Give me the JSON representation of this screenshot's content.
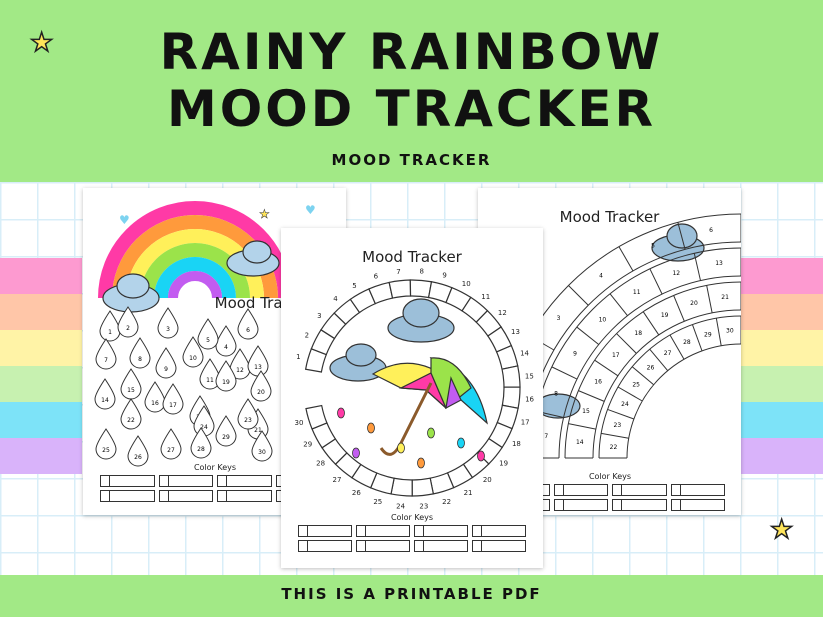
{
  "header": {
    "title_line1": "RAINY RAINBOW",
    "title_line2": "MOOD TRACKER",
    "subtitle": "MOOD TRACKER"
  },
  "footer": {
    "text": "THIS IS A PRINTABLE PDF"
  },
  "pages": {
    "left": {
      "title": "Mood Tracker",
      "keys_label": "Color Keys"
    },
    "center": {
      "title": "Mood Tracker",
      "keys_label": "Color Keys"
    },
    "right": {
      "title": "Mood Tracker",
      "keys_label": "Color Keys"
    }
  },
  "days": [
    1,
    2,
    3,
    4,
    5,
    6,
    7,
    8,
    9,
    10,
    11,
    12,
    13,
    14,
    15,
    16,
    17,
    18,
    19,
    20,
    21,
    22,
    23,
    24,
    25,
    26,
    27,
    28,
    29,
    30
  ],
  "colors": {
    "green": "#a2e986",
    "pink": "#ff3aa6",
    "orange": "#ff9a3c",
    "yellow": "#fff05a",
    "lime": "#9be34a",
    "cyan": "#19d4f5",
    "purple": "#c25cf0",
    "cloud": "#9cbfd9",
    "stripes": [
      "#fd9ad0",
      "#ffc6a8",
      "#fff3a6",
      "#c7f1b0",
      "#7de3f8",
      "#d9b3fa"
    ]
  },
  "icons": [
    "star-icon",
    "heart-icon",
    "cloud-icon",
    "umbrella-icon",
    "raindrop-icon",
    "rainbow-icon"
  ]
}
